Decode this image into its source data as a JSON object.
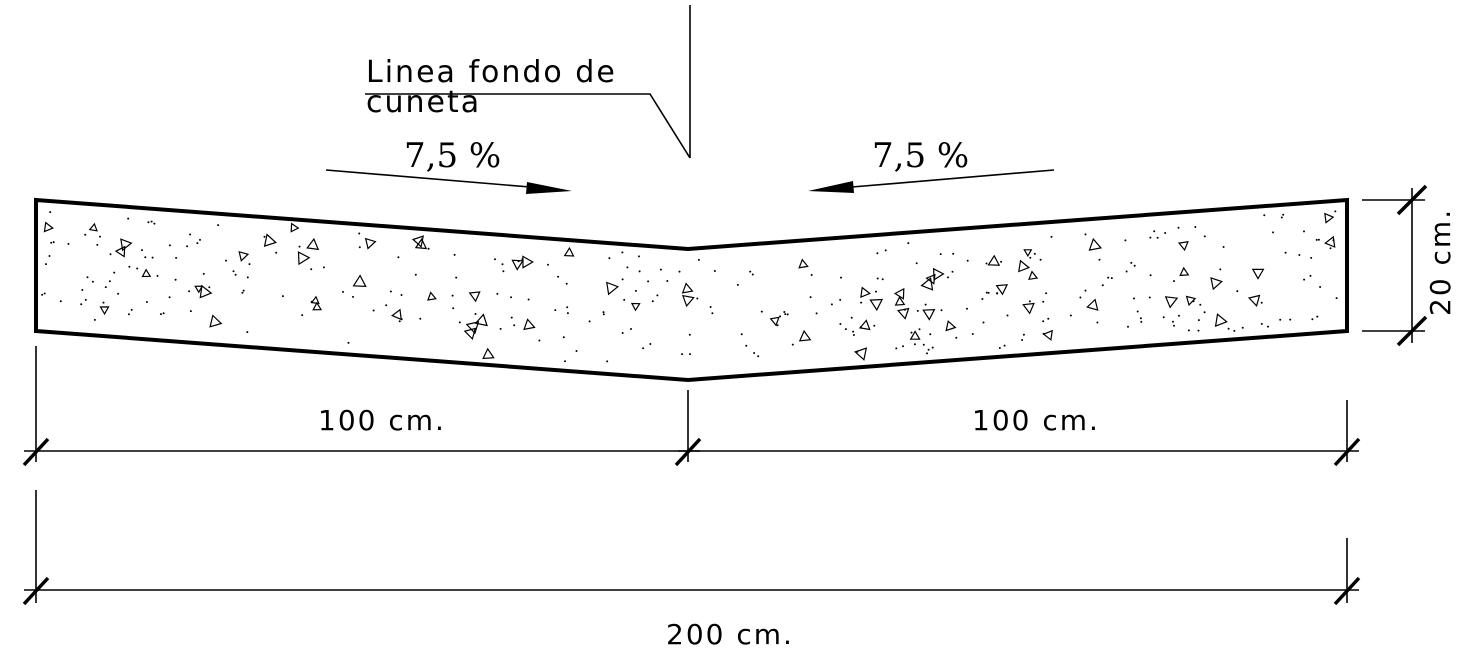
{
  "labels": {
    "callout_line1": "Linea fondo de",
    "callout_line2": "cuneta",
    "slope_left": "7,5 %",
    "slope_right": "7,5 %",
    "dim_left": "100 cm.",
    "dim_right": "100 cm.",
    "dim_total": "200 cm.",
    "dim_height": "20 cm."
  },
  "colors": {
    "ink": "#000000",
    "background": "#ffffff"
  }
}
